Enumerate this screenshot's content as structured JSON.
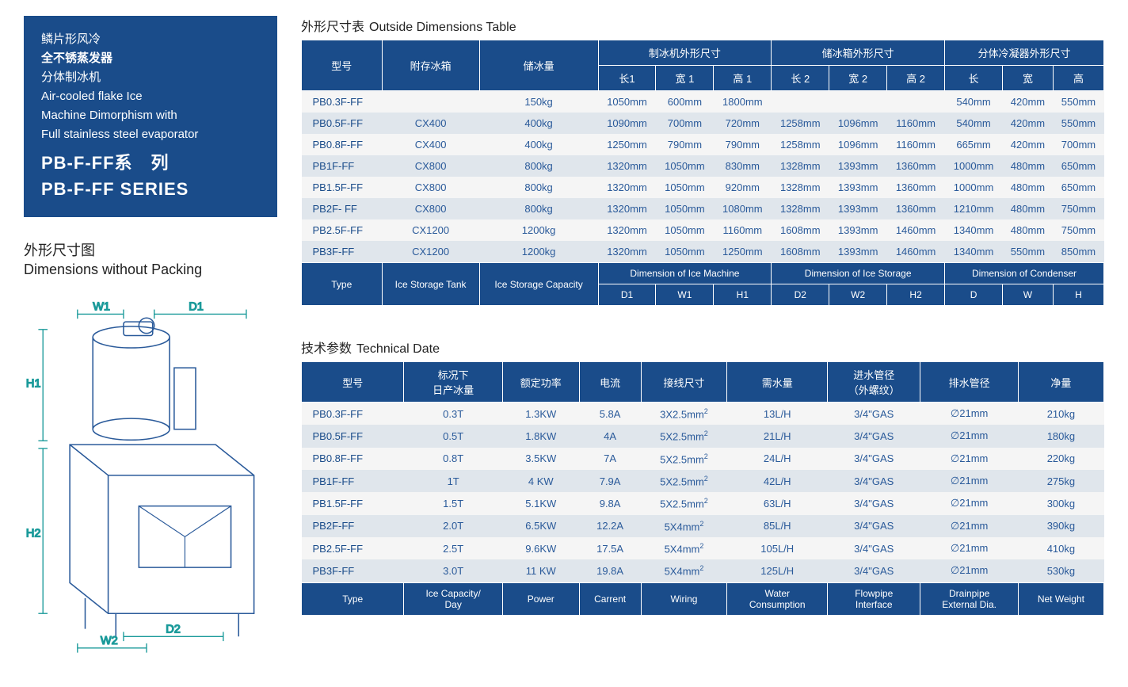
{
  "titleBox": {
    "l1": "鳞片形风冷",
    "l2": "全不锈蒸发器",
    "l3": "分体制冰机",
    "l4": "Air-cooled flake Ice",
    "l5": "Machine Dimorphism with",
    "l6": "Full stainless steel evaporator",
    "series_zh": "PB-F-FF系　列",
    "series_en": "PB-F-FF SERIES"
  },
  "dimTitle": {
    "zh": "外形尺寸图",
    "en": "Dimensions without Packing"
  },
  "diagramLabels": {
    "w1": "W1",
    "d1": "D1",
    "h1": "H1",
    "h2": "H2",
    "d2": "D2",
    "w2": "W2"
  },
  "diagramColors": {
    "stroke": "#2a5a9a",
    "label": "#1a9a9a",
    "arrow": "#1a9a9a"
  },
  "table1": {
    "title_zh": "外形尺寸表",
    "title_en": "Outside Dimensions Table",
    "head": {
      "model": "型号",
      "tank": "附存冰箱",
      "cap": "储冰量",
      "g1": "制冰机外形尺寸",
      "g2": "储冰箱外形尺寸",
      "g3": "分体冷凝器外形尺寸",
      "L1": "长1",
      "W1": "宽 1",
      "H1": "高 1",
      "L2": "长 2",
      "W2": "宽 2",
      "H2": "高 2",
      "D": "长",
      "W": "宽",
      "H": "高"
    },
    "foot": {
      "type": "Type",
      "tank": "Ice Storage Tank",
      "cap": "Ice Storage Capacity",
      "g1": "Dimension of Ice Machine",
      "g2": "Dimension of Ice Storage",
      "g3": "Dimension of Condenser",
      "D1": "D1",
      "W1": "W1",
      "H1": "H1",
      "D2": "D2",
      "W2": "W2",
      "H2": "H2",
      "D": "D",
      "W": "W",
      "H": "H"
    },
    "rows": [
      [
        "PB0.3F-FF",
        "",
        "150kg",
        "1050mm",
        "600mm",
        "1800mm",
        "",
        "",
        "",
        "540mm",
        "420mm",
        "550mm"
      ],
      [
        "PB0.5F-FF",
        "CX400",
        "400kg",
        "1090mm",
        "700mm",
        "720mm",
        "1258mm",
        "1096mm",
        "1160mm",
        "540mm",
        "420mm",
        "550mm"
      ],
      [
        "PB0.8F-FF",
        "CX400",
        "400kg",
        "1250mm",
        "790mm",
        "790mm",
        "1258mm",
        "1096mm",
        "1160mm",
        "665mm",
        "420mm",
        "700mm"
      ],
      [
        "PB1F-FF",
        "CX800",
        "800kg",
        "1320mm",
        "1050mm",
        "830mm",
        "1328mm",
        "1393mm",
        "1360mm",
        "1000mm",
        "480mm",
        "650mm"
      ],
      [
        "PB1.5F-FF",
        "CX800",
        "800kg",
        "1320mm",
        "1050mm",
        "920mm",
        "1328mm",
        "1393mm",
        "1360mm",
        "1000mm",
        "480mm",
        "650mm"
      ],
      [
        "PB2F- FF",
        "CX800",
        "800kg",
        "1320mm",
        "1050mm",
        "1080mm",
        "1328mm",
        "1393mm",
        "1360mm",
        "1210mm",
        "480mm",
        "750mm"
      ],
      [
        "PB2.5F-FF",
        "CX1200",
        "1200kg",
        "1320mm",
        "1050mm",
        "1160mm",
        "1608mm",
        "1393mm",
        "1460mm",
        "1340mm",
        "480mm",
        "750mm"
      ],
      [
        "PB3F-FF",
        "CX1200",
        "1200kg",
        "1320mm",
        "1050mm",
        "1250mm",
        "1608mm",
        "1393mm",
        "1460mm",
        "1340mm",
        "550mm",
        "850mm"
      ]
    ]
  },
  "table2": {
    "title_zh": "技术参数",
    "title_en": "Technical Date",
    "head": {
      "c1": "型号",
      "c2": "标况下\n日产冰量",
      "c3": "额定功率",
      "c4": "电流",
      "c5": "接线尺寸",
      "c6": "需水量",
      "c7": "进水管径\n（外螺纹）",
      "c8": "排水管径",
      "c9": "净量"
    },
    "foot": {
      "c1": "Type",
      "c2": "Ice Capacity/\nDay",
      "c3": "Power",
      "c4": "Carrent",
      "c5": "Wiring",
      "c6": "Water\nConsumption",
      "c7": "Flowpipe\nInterface",
      "c8": "Drainpipe\nExternal Dia.",
      "c9": "Net Weight"
    },
    "rows": [
      [
        "PB0.3F-FF",
        "0.3T",
        "1.3KW",
        "5.8A",
        "3X2.5mm²",
        "13L/H",
        "3/4\"GAS",
        "∅21mm",
        "210kg"
      ],
      [
        "PB0.5F-FF",
        "0.5T",
        "1.8KW",
        "4A",
        "5X2.5mm²",
        "21L/H",
        "3/4\"GAS",
        "∅21mm",
        "180kg"
      ],
      [
        "PB0.8F-FF",
        "0.8T",
        "3.5KW",
        "7A",
        "5X2.5mm²",
        "24L/H",
        "3/4\"GAS",
        "∅21mm",
        "220kg"
      ],
      [
        "PB1F-FF",
        "1T",
        "4 KW",
        "7.9A",
        "5X2.5mm²",
        "42L/H",
        "3/4\"GAS",
        "∅21mm",
        "275kg"
      ],
      [
        "PB1.5F-FF",
        "1.5T",
        "5.1KW",
        "9.8A",
        "5X2.5mm²",
        "63L/H",
        "3/4\"GAS",
        "∅21mm",
        "300kg"
      ],
      [
        "PB2F-FF",
        "2.0T",
        "6.5KW",
        "12.2A",
        "5X4mm²",
        "85L/H",
        "3/4\"GAS",
        "∅21mm",
        "390kg"
      ],
      [
        "PB2.5F-FF",
        "2.5T",
        "9.6KW",
        "17.5A",
        "5X4mm²",
        "105L/H",
        "3/4\"GAS",
        "∅21mm",
        "410kg"
      ],
      [
        "PB3F-FF",
        "3.0T",
        "11 KW",
        "19.8A",
        "5X4mm²",
        "125L/H",
        "3/4\"GAS",
        "∅21mm",
        "530kg"
      ]
    ]
  },
  "colors": {
    "brand": "#1a4c8a",
    "cell": "#2a5a9a",
    "rowOdd": "#f5f5f5",
    "rowEven": "#e0e6ec"
  }
}
